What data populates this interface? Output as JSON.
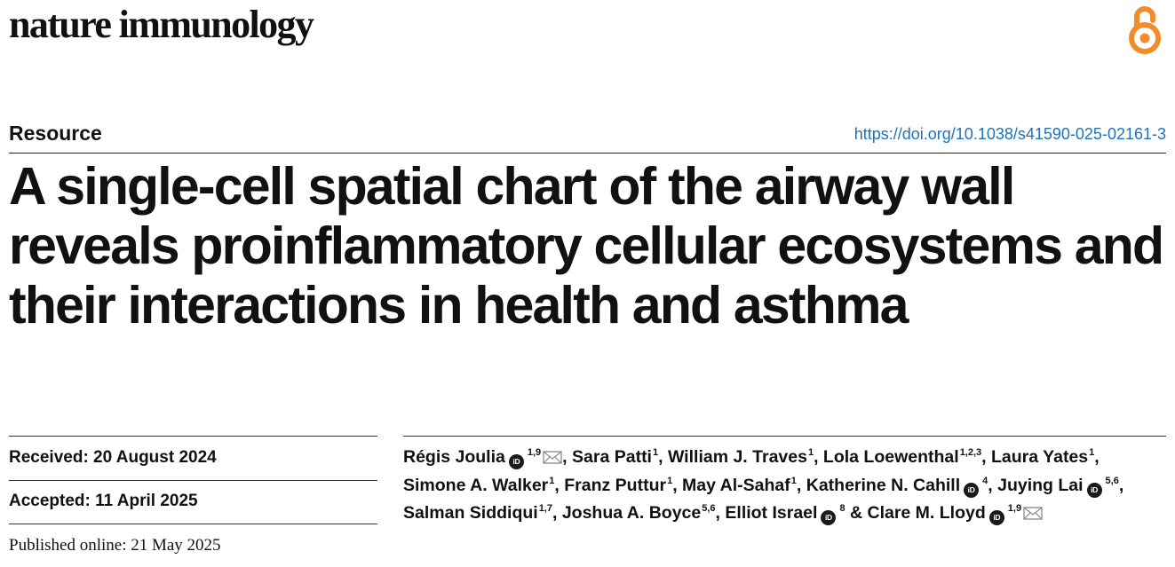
{
  "header": {
    "journal_name": "nature immunology",
    "open_access_icon": "open-access-lock-icon",
    "accent_color": "#f28c28"
  },
  "article": {
    "type": "Resource",
    "doi": "https://doi.org/10.1038/s41590-025-02161-3",
    "title": "A single-cell spatial chart of the airway wall reveals proinflammatory cellular ecosystems and their interactions in health and asthma"
  },
  "dates": {
    "received": "Received: 20 August 2024",
    "accepted": "Accepted: 11 April 2025",
    "published": "Published online: 21 May 2025"
  },
  "authors": [
    {
      "name": "Régis Joulia",
      "orcid": true,
      "sup": "1,9",
      "email": true,
      "sep": ","
    },
    {
      "name": "Sara Patti",
      "orcid": false,
      "sup": "1",
      "email": false,
      "sep": ","
    },
    {
      "name": "William J. Traves",
      "orcid": false,
      "sup": "1",
      "email": false,
      "sep": ","
    },
    {
      "name": "Lola Loewenthal",
      "orcid": false,
      "sup": "1,2,3",
      "email": false,
      "sep": ","
    },
    {
      "name": "Laura Yates",
      "orcid": false,
      "sup": "1",
      "email": false,
      "sep": ","
    },
    {
      "name": "Simone A. Walker",
      "orcid": false,
      "sup": "1",
      "email": false,
      "sep": ","
    },
    {
      "name": "Franz Puttur",
      "orcid": false,
      "sup": "1",
      "email": false,
      "sep": ","
    },
    {
      "name": "May Al-Sahaf",
      "orcid": false,
      "sup": "1",
      "email": false,
      "sep": ","
    },
    {
      "name": "Katherine N. Cahill",
      "orcid": true,
      "sup": "4",
      "email": false,
      "sep": ","
    },
    {
      "name": "Juying Lai",
      "orcid": true,
      "sup": "5,6",
      "email": false,
      "sep": ","
    },
    {
      "name": "Salman Siddiqui",
      "orcid": false,
      "sup": "1,7",
      "email": false,
      "sep": ","
    },
    {
      "name": "Joshua A. Boyce",
      "orcid": false,
      "sup": "5,6",
      "email": false,
      "sep": ","
    },
    {
      "name": "Elliot Israel",
      "orcid": true,
      "sup": "8",
      "email": false,
      "sep": " &"
    },
    {
      "name": "Clare M. Lloyd",
      "orcid": true,
      "sup": "1,9",
      "email": true,
      "sep": ""
    }
  ]
}
